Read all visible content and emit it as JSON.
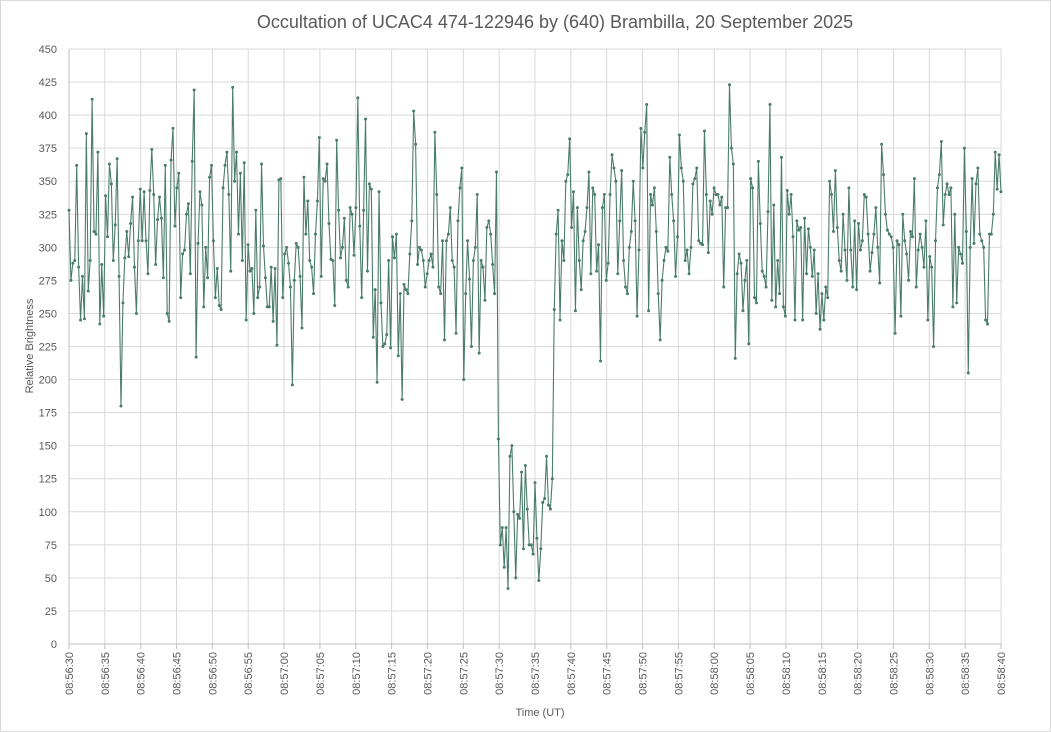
{
  "chart_data": {
    "type": "line",
    "title": "Occultation of UCAC4 474-122946 by (640) Brambilla, 20 September 2025",
    "xlabel": "Time (UT)",
    "ylabel": "Relative Brightness",
    "ylim": [
      0,
      450
    ],
    "yticks": [
      0,
      25,
      50,
      75,
      100,
      125,
      150,
      175,
      200,
      225,
      250,
      275,
      300,
      325,
      350,
      375,
      400,
      425,
      450
    ],
    "xlim_seconds": [
      0,
      130
    ],
    "xtick_labels": [
      "08:56:30",
      "08:56:35",
      "08:56:40",
      "08:56:45",
      "08:56:50",
      "08:56:55",
      "08:57:00",
      "08:57:05",
      "08:57:10",
      "08:57:15",
      "08:57:20",
      "08:57:25",
      "08:57:30",
      "08:57:35",
      "08:57:40",
      "08:57:45",
      "08:57:50",
      "08:57:55",
      "08:58:00",
      "08:58:05",
      "08:58:10",
      "08:58:15",
      "08:58:20",
      "08:58:25",
      "08:58:30",
      "08:58:35",
      "08:58:40"
    ],
    "x_start": "08:56:30",
    "x_end": "08:58:40",
    "grid": true,
    "legend": "none",
    "series": [
      {
        "color": "#4a7c6a",
        "marker": "circle",
        "values": [
          328,
          275,
          288,
          290,
          362,
          285,
          245,
          278,
          246,
          386,
          267,
          290,
          412,
          312,
          310,
          372,
          242,
          287,
          248,
          339,
          308,
          363,
          348,
          290,
          317,
          367,
          278,
          180,
          258,
          292,
          312,
          293,
          318,
          338,
          285,
          250,
          305,
          344,
          305,
          342,
          305,
          280,
          343,
          374,
          340,
          287,
          321,
          338,
          322,
          277,
          362,
          250,
          244,
          366,
          390,
          316,
          345,
          356,
          262,
          295,
          298,
          325,
          333,
          280,
          365,
          419,
          217,
          303,
          342,
          332,
          255,
          300,
          277,
          353,
          362,
          305,
          262,
          284,
          256,
          253,
          345,
          362,
          372,
          340,
          282,
          421,
          350,
          372,
          310,
          356,
          290,
          364,
          245,
          302,
          282,
          284,
          250,
          328,
          262,
          270,
          363,
          301,
          277,
          255,
          255,
          285,
          244,
          284,
          226,
          351,
          352,
          262,
          295,
          300,
          288,
          270,
          196,
          275,
          303,
          300,
          278,
          239,
          353,
          310,
          335,
          290,
          285,
          265,
          310,
          335,
          383,
          278,
          352,
          350,
          363,
          318,
          291,
          290,
          256,
          381,
          328,
          292,
          300,
          322,
          275,
          270,
          330,
          325,
          294,
          330,
          413,
          316,
          262,
          328,
          397,
          282,
          348,
          344,
          232,
          268,
          198,
          342,
          258,
          225,
          227,
          234,
          290,
          224,
          308,
          292,
          310,
          218,
          265,
          185,
          272,
          268,
          265,
          295,
          320,
          403,
          378,
          287,
          300,
          298,
          290,
          270,
          280,
          290,
          295,
          285,
          387,
          340,
          270,
          265,
          305,
          230,
          305,
          310,
          330,
          290,
          285,
          235,
          320,
          345,
          360,
          200,
          265,
          305,
          276,
          225,
          290,
          300,
          340,
          220,
          290,
          285,
          260,
          315,
          320,
          310,
          287,
          265,
          357,
          155,
          75,
          88,
          58,
          88,
          42,
          142,
          150,
          100,
          50,
          98,
          95,
          130,
          72,
          135,
          102,
          75,
          75,
          68,
          122,
          80,
          48,
          72,
          107,
          110,
          142,
          105,
          102,
          125,
          253,
          310,
          328,
          245,
          305,
          290,
          350,
          355,
          382,
          315,
          342,
          252,
          330,
          290,
          268,
          305,
          312,
          330,
          357,
          280,
          345,
          340,
          282,
          302,
          214,
          330,
          340,
          275,
          288,
          340,
          370,
          360,
          350,
          280,
          320,
          358,
          290,
          270,
          265,
          300,
          312,
          350,
          320,
          248,
          298,
          390,
          360,
          387,
          408,
          252,
          340,
          332,
          345,
          312,
          265,
          230,
          275,
          290,
          300,
          297,
          368,
          340,
          320,
          278,
          308,
          385,
          360,
          350,
          290,
          298,
          280,
          300,
          348,
          352,
          360,
          305,
          303,
          302,
          388,
          340,
          296,
          335,
          325,
          345,
          340,
          340,
          332,
          338,
          270,
          330,
          330,
          423,
          375,
          363,
          216,
          280,
          295,
          288,
          252,
          275,
          290,
          227,
          352,
          345,
          262,
          258,
          365,
          318,
          282,
          278,
          270,
          327,
          408,
          260,
          332,
          255,
          290,
          265,
          368,
          255,
          248,
          343,
          325,
          340,
          308,
          245,
          320,
          313,
          315,
          245,
          322,
          280,
          314,
          300,
          278,
          298,
          250,
          280,
          238,
          265,
          245,
          270,
          262,
          350,
          340,
          312,
          358,
          315,
          290,
          282,
          325,
          298,
          275,
          345,
          298,
          270,
          320,
          268,
          318,
          298,
          305,
          340,
          338,
          310,
          282,
          296,
          310,
          330,
          300,
          273,
          378,
          355,
          325,
          313,
          310,
          308,
          300,
          235,
          305,
          302,
          248,
          325,
          305,
          295,
          275,
          312,
          308,
          352,
          270,
          298,
          310,
          300,
          285,
          320,
          245,
          293,
          285,
          225,
          305,
          345,
          355,
          380,
          317,
          340,
          348,
          340,
          345,
          255,
          325,
          258,
          300,
          295,
          288,
          375,
          312,
          205,
          300,
          352,
          303,
          348,
          360,
          310,
          305,
          300,
          245,
          242,
          310,
          310,
          325,
          372,
          344,
          370,
          342
        ]
      }
    ]
  }
}
